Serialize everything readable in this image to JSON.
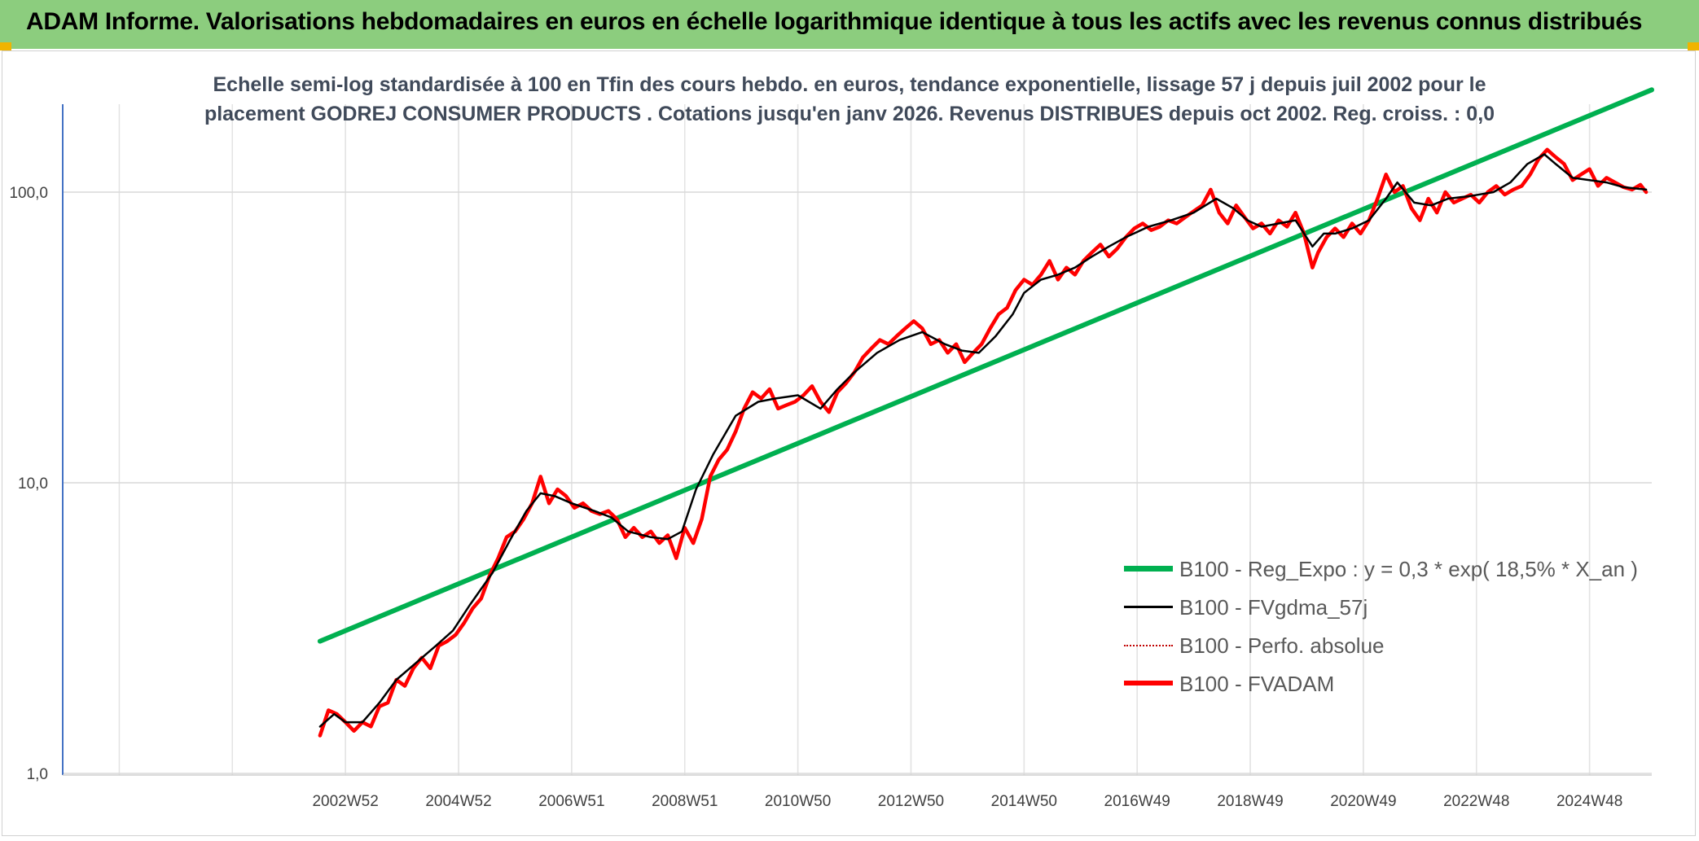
{
  "banner": {
    "title": "ADAM Informe. Valorisations hebdomadaires en euros en échelle logarithmique identique à tous les actifs avec les revenus connus distribués",
    "background": "#8ccd7e"
  },
  "chart_data": {
    "type": "line",
    "title_line1": "Echelle semi-log standardisée à 100 en Tfin des cours hebdo. en euros, tendance exponentielle, lissage 57 j depuis juil 2002 pour le",
    "title_line2": "placement GODREJ CONSUMER PRODUCTS . Cotations jusqu'en janv 2026. Revenus DISTRIBUES depuis oct 2002. Reg. croiss. : 0,0",
    "yscale": "log",
    "ylim": [
      1,
      200
    ],
    "yticks": [
      {
        "value": 1,
        "label": "1,0"
      },
      {
        "value": 10,
        "label": "10,0"
      },
      {
        "value": 100,
        "label": "100,0"
      }
    ],
    "xlim": [
      1998.0,
      2026.1
    ],
    "xticks": [
      {
        "value": 2003.0,
        "label": "2002W52"
      },
      {
        "value": 2005.0,
        "label": "2004W52"
      },
      {
        "value": 2007.0,
        "label": "2006W51"
      },
      {
        "value": 2009.0,
        "label": "2008W51"
      },
      {
        "value": 2011.0,
        "label": "2010W50"
      },
      {
        "value": 2013.0,
        "label": "2012W50"
      },
      {
        "value": 2015.0,
        "label": "2014W50"
      },
      {
        "value": 2017.0,
        "label": "2016W49"
      },
      {
        "value": 2019.0,
        "label": "2018W49"
      },
      {
        "value": 2021.0,
        "label": "2020W49"
      },
      {
        "value": 2023.0,
        "label": "2022W48"
      },
      {
        "value": 2025.0,
        "label": "2024W48"
      }
    ],
    "grid": true,
    "legend_position": "bottom-right",
    "series": [
      {
        "name": "B100 - Reg_Expo : y = 0,3 * exp( 18,5% *  X_an )",
        "color": "#00b050",
        "style": "solid",
        "x": [
          2002.55,
          2026.1
        ],
        "y": [
          2.85,
          225
        ]
      },
      {
        "name": "B100 - FVgdma_57j",
        "color": "#000000",
        "style": "solid",
        "x": [
          2002.55,
          2002.8,
          2003.0,
          2003.3,
          2003.6,
          2003.9,
          2004.3,
          2004.6,
          2004.9,
          2005.2,
          2005.6,
          2005.9,
          2006.2,
          2006.45,
          2006.7,
          2007.0,
          2007.4,
          2007.7,
          2008.0,
          2008.4,
          2008.7,
          2008.95,
          2009.2,
          2009.5,
          2009.9,
          2010.3,
          2010.6,
          2011.0,
          2011.4,
          2011.7,
          2012.0,
          2012.4,
          2012.8,
          2013.2,
          2013.6,
          2013.9,
          2014.2,
          2014.5,
          2014.8,
          2015.0,
          2015.3,
          2015.6,
          2015.9,
          2016.2,
          2016.5,
          2016.8,
          2017.2,
          2017.6,
          2018.0,
          2018.4,
          2018.7,
          2018.95,
          2019.2,
          2019.5,
          2019.8,
          2020.1,
          2020.3,
          2020.5,
          2020.8,
          2021.1,
          2021.4,
          2021.6,
          2021.9,
          2022.2,
          2022.5,
          2022.9,
          2023.3,
          2023.6,
          2023.9,
          2024.2,
          2024.4,
          2024.7,
          2025.0,
          2025.3,
          2025.6,
          2026.0
        ],
        "y": [
          1.45,
          1.6,
          1.5,
          1.5,
          1.75,
          2.1,
          2.45,
          2.75,
          3.1,
          3.8,
          4.9,
          6.3,
          8.0,
          9.2,
          9.0,
          8.5,
          8.0,
          7.6,
          6.8,
          6.5,
          6.4,
          6.8,
          9.5,
          12.5,
          17.0,
          19.0,
          19.5,
          20.0,
          18.0,
          21.0,
          24.0,
          28.0,
          31.0,
          33.0,
          30.0,
          28.5,
          28.0,
          32.0,
          38.0,
          45.0,
          50.0,
          52.0,
          55.0,
          60.0,
          65.0,
          70.0,
          76.0,
          80.0,
          85.0,
          95.0,
          88.0,
          80.0,
          76.0,
          78.0,
          80.0,
          65.0,
          72.0,
          72.0,
          75.0,
          80.0,
          95.0,
          108.0,
          92.0,
          90.0,
          95.0,
          97.0,
          100.0,
          108.0,
          125.0,
          135.0,
          125.0,
          112.0,
          110.0,
          108.0,
          104.0,
          102.0
        ]
      },
      {
        "name": "B100 - Perfo. absolue",
        "color": "#c00000",
        "style": "dotted",
        "x": [],
        "y": []
      },
      {
        "name": "B100 - FVADAM",
        "color": "#ff0000",
        "style": "solid",
        "x": [
          2002.55,
          2002.7,
          2002.85,
          2003.0,
          2003.15,
          2003.3,
          2003.45,
          2003.6,
          2003.75,
          2003.9,
          2004.05,
          2004.2,
          2004.35,
          2004.5,
          2004.65,
          2004.8,
          2004.95,
          2005.1,
          2005.25,
          2005.4,
          2005.55,
          2005.7,
          2005.85,
          2006.0,
          2006.15,
          2006.3,
          2006.45,
          2006.6,
          2006.75,
          2006.9,
          2007.05,
          2007.2,
          2007.35,
          2007.5,
          2007.65,
          2007.8,
          2007.95,
          2008.1,
          2008.25,
          2008.4,
          2008.55,
          2008.7,
          2008.85,
          2009.0,
          2009.15,
          2009.3,
          2009.45,
          2009.6,
          2009.75,
          2009.9,
          2010.05,
          2010.2,
          2010.35,
          2010.5,
          2010.65,
          2010.8,
          2010.95,
          2011.1,
          2011.25,
          2011.4,
          2011.55,
          2011.7,
          2011.85,
          2012.0,
          2012.15,
          2012.3,
          2012.45,
          2012.6,
          2012.75,
          2012.9,
          2013.05,
          2013.2,
          2013.35,
          2013.5,
          2013.65,
          2013.8,
          2013.95,
          2014.1,
          2014.25,
          2014.4,
          2014.55,
          2014.7,
          2014.85,
          2015.0,
          2015.15,
          2015.3,
          2015.45,
          2015.6,
          2015.75,
          2015.9,
          2016.05,
          2016.2,
          2016.35,
          2016.5,
          2016.65,
          2016.8,
          2016.95,
          2017.1,
          2017.25,
          2017.4,
          2017.55,
          2017.7,
          2017.85,
          2018.0,
          2018.15,
          2018.3,
          2018.45,
          2018.6,
          2018.75,
          2018.9,
          2019.05,
          2019.2,
          2019.35,
          2019.5,
          2019.65,
          2019.8,
          2019.95,
          2020.1,
          2020.2,
          2020.35,
          2020.5,
          2020.65,
          2020.8,
          2020.95,
          2021.1,
          2021.25,
          2021.4,
          2021.55,
          2021.7,
          2021.85,
          2022.0,
          2022.15,
          2022.3,
          2022.45,
          2022.6,
          2022.75,
          2022.9,
          2023.05,
          2023.2,
          2023.35,
          2023.5,
          2023.65,
          2023.8,
          2023.95,
          2024.1,
          2024.25,
          2024.4,
          2024.55,
          2024.7,
          2024.85,
          2025.0,
          2025.15,
          2025.3,
          2025.45,
          2025.6,
          2025.75,
          2025.9,
          2026.0
        ],
        "y": [
          1.35,
          1.65,
          1.6,
          1.5,
          1.4,
          1.5,
          1.45,
          1.7,
          1.75,
          2.1,
          2.0,
          2.3,
          2.5,
          2.3,
          2.75,
          2.85,
          3.0,
          3.3,
          3.7,
          4.0,
          4.8,
          5.5,
          6.5,
          6.8,
          7.5,
          8.5,
          10.5,
          8.5,
          9.5,
          9.0,
          8.2,
          8.5,
          8.0,
          7.8,
          8.0,
          7.5,
          6.5,
          7.0,
          6.5,
          6.8,
          6.2,
          6.6,
          5.5,
          7.0,
          6.2,
          7.5,
          10.5,
          12.0,
          13.0,
          15.0,
          18.0,
          20.5,
          19.5,
          21.0,
          18.0,
          18.5,
          19.0,
          20.0,
          21.5,
          19.0,
          17.5,
          20.5,
          22.0,
          24.0,
          27.0,
          29.0,
          31.0,
          30.0,
          32.0,
          34.0,
          36.0,
          34.0,
          30.0,
          31.0,
          28.0,
          30.0,
          26.0,
          28.0,
          30.0,
          34.0,
          38.0,
          40.0,
          46.0,
          50.0,
          48.0,
          52.0,
          58.0,
          50.0,
          55.0,
          52.0,
          58.0,
          62.0,
          66.0,
          60.0,
          64.0,
          70.0,
          75.0,
          78.0,
          74.0,
          76.0,
          80.0,
          78.0,
          82.0,
          86.0,
          90.0,
          102.0,
          85.0,
          78.0,
          90.0,
          82.0,
          75.0,
          78.0,
          72.0,
          80.0,
          76.0,
          85.0,
          72.0,
          55.0,
          62.0,
          70.0,
          75.0,
          70.0,
          78.0,
          72.0,
          80.0,
          95.0,
          115.0,
          100.0,
          105.0,
          88.0,
          80.0,
          95.0,
          85.0,
          100.0,
          92.0,
          95.0,
          98.0,
          92.0,
          100.0,
          105.0,
          98.0,
          102.0,
          105.0,
          115.0,
          130.0,
          140.0,
          132.0,
          125.0,
          110.0,
          115.0,
          120.0,
          105.0,
          112.0,
          108.0,
          104.0,
          102.0,
          106.0,
          100.0
        ]
      }
    ]
  }
}
